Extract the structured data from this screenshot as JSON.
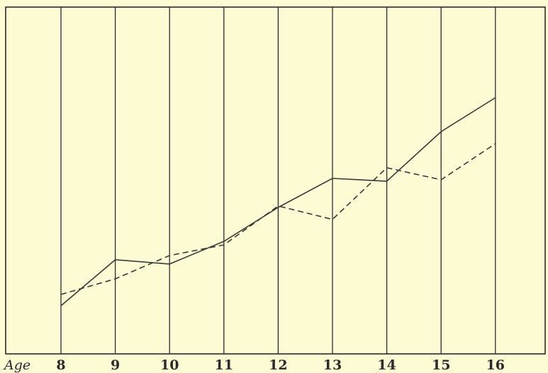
{
  "chart_data": {
    "type": "line",
    "xlabel": "Age",
    "x": [
      8,
      9,
      10,
      11,
      12,
      13,
      14,
      15,
      16
    ],
    "tick_labels": [
      "8",
      "9",
      "10",
      "11",
      "12",
      "13",
      "14",
      "15",
      "16"
    ],
    "ylim": [
      0,
      490
    ],
    "grid": "vertical",
    "series": [
      {
        "style": "solid",
        "color": "#3a3a3a",
        "values": [
          68,
          133,
          127,
          159,
          207,
          248,
          244,
          314,
          362
        ]
      },
      {
        "style": "dashed",
        "color": "#3a3a3a",
        "values": [
          84,
          106,
          139,
          154,
          209,
          190,
          263,
          246,
          297
        ]
      }
    ],
    "colors": {
      "background": "#fdfbd3",
      "ink": "#2b2b2b"
    }
  }
}
